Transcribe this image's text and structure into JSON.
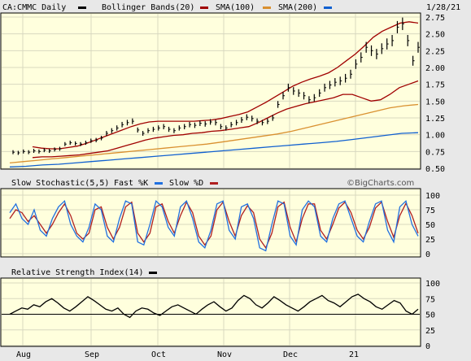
{
  "header": {
    "symbol": "CA:CMMC Daily",
    "bollinger_label": "Bollinger Bands(20)",
    "sma100_label": "SMA(100)",
    "sma200_label": "SMA(200)",
    "date": "1/28/21"
  },
  "stoch_header": {
    "title": "Slow Stochastic(5,5)",
    "fastk_label": "Fast %K",
    "slowd_label": "Slow %D",
    "watermark": "©BigCharts.com"
  },
  "rsi_header": {
    "title": "Relative Strength Index(14)"
  },
  "colors": {
    "background": "#ffffdd",
    "price": "#000000",
    "bollinger": "#a00000",
    "sma100": "#d99030",
    "sma200": "#1060d0",
    "fastk": "#2070e0",
    "slowd": "#b02020",
    "rsi": "#000000",
    "grid": "#d8d8c0"
  },
  "chart_data": [
    {
      "type": "line",
      "title": "CA:CMMC Daily",
      "ylim": [
        0.5,
        2.75
      ],
      "yticks": [
        "2.75",
        "2.50",
        "2.25",
        "2.00",
        "1.75",
        "1.50",
        "1.25",
        "1.00",
        "0.75",
        "0.50"
      ],
      "xticks": [
        "Aug",
        "Sep",
        "Oct",
        "Nov",
        "Dec",
        "21"
      ],
      "price_y": [
        0.74,
        0.73,
        0.75,
        0.74,
        0.76,
        0.75,
        0.77,
        0.76,
        0.78,
        0.79,
        0.86,
        0.88,
        0.87,
        0.86,
        0.88,
        0.91,
        0.92,
        0.95,
        1.02,
        1.06,
        1.1,
        1.15,
        1.18,
        1.2,
        1.07,
        1.02,
        1.06,
        1.08,
        1.1,
        1.12,
        1.08,
        1.06,
        1.1,
        1.12,
        1.15,
        1.14,
        1.17,
        1.16,
        1.19,
        1.18,
        1.12,
        1.1,
        1.15,
        1.18,
        1.22,
        1.26,
        1.24,
        1.2,
        1.18,
        1.2,
        1.25,
        1.45,
        1.58,
        1.7,
        1.65,
        1.62,
        1.58,
        1.52,
        1.55,
        1.62,
        1.7,
        1.74,
        1.78,
        1.8,
        1.84,
        1.9,
        2.05,
        2.15,
        2.3,
        2.25,
        2.2,
        2.28,
        2.35,
        2.4,
        2.6,
        2.65,
        2.4,
        2.1,
        2.3
      ],
      "series": [
        {
          "name": "Bollinger Bands(20)",
          "values": [
            0.82,
            0.8,
            0.79,
            0.79,
            0.81,
            0.83,
            0.87,
            0.92,
            0.97,
            1.02,
            1.07,
            1.12,
            1.16,
            1.19,
            1.2,
            1.2,
            1.2,
            1.2,
            1.2,
            1.21,
            1.22,
            1.24,
            1.27,
            1.3,
            1.34,
            1.41,
            1.48,
            1.56,
            1.64,
            1.72,
            1.78,
            1.83,
            1.87,
            1.92,
            2.0,
            2.1,
            2.2,
            2.32,
            2.45,
            2.54,
            2.6,
            2.66,
            2.68,
            2.66
          ]
        },
        {
          "name": "Bollinger Bands(20)",
          "values": [
            0.66,
            0.67,
            0.67,
            0.68,
            0.69,
            0.7,
            0.72,
            0.74,
            0.76,
            0.8,
            0.84,
            0.88,
            0.92,
            0.95,
            0.97,
            0.99,
            1.0,
            1.02,
            1.03,
            1.05,
            1.06,
            1.08,
            1.1,
            1.12,
            1.18,
            1.25,
            1.32,
            1.38,
            1.42,
            1.46,
            1.49,
            1.52,
            1.55,
            1.6,
            1.6,
            1.55,
            1.5,
            1.52,
            1.6,
            1.7,
            1.75,
            1.8
          ]
        },
        {
          "name": "SMA(100)",
          "values": [
            0.58,
            0.6,
            0.62,
            0.64,
            0.66,
            0.68,
            0.7,
            0.72,
            0.74,
            0.76,
            0.78,
            0.8,
            0.82,
            0.84,
            0.86,
            0.89,
            0.92,
            0.95,
            0.98,
            1.01,
            1.05,
            1.1,
            1.15,
            1.2,
            1.25,
            1.3,
            1.35,
            1.4,
            1.43,
            1.45
          ]
        },
        {
          "name": "SMA(200)",
          "values": [
            0.52,
            0.53,
            0.55,
            0.56,
            0.58,
            0.6,
            0.62,
            0.64,
            0.66,
            0.68,
            0.7,
            0.72,
            0.74,
            0.76,
            0.78,
            0.8,
            0.82,
            0.84,
            0.86,
            0.88,
            0.9,
            0.93,
            0.96,
            0.99,
            1.02,
            1.03
          ]
        }
      ]
    },
    {
      "type": "line",
      "title": "Slow Stochastic(5,5)",
      "ylim": [
        0,
        100
      ],
      "yticks": [
        "100",
        "75",
        "50",
        "25",
        "0"
      ],
      "series": [
        {
          "name": "Fast %K",
          "values": [
            70,
            85,
            60,
            50,
            75,
            40,
            30,
            60,
            80,
            90,
            50,
            30,
            20,
            45,
            85,
            75,
            30,
            20,
            60,
            90,
            85,
            20,
            15,
            50,
            90,
            80,
            45,
            30,
            80,
            90,
            60,
            20,
            10,
            40,
            85,
            90,
            40,
            25,
            80,
            85,
            60,
            10,
            5,
            50,
            90,
            85,
            30,
            15,
            75,
            90,
            80,
            30,
            20,
            60,
            85,
            90,
            60,
            30,
            20,
            55,
            85,
            90,
            40,
            20,
            80,
            90,
            50,
            30
          ]
        },
        {
          "name": "Slow %D",
          "values": [
            60,
            75,
            70,
            55,
            65,
            50,
            35,
            50,
            70,
            85,
            65,
            35,
            25,
            35,
            75,
            80,
            45,
            25,
            45,
            80,
            88,
            35,
            20,
            35,
            80,
            85,
            55,
            35,
            65,
            88,
            70,
            30,
            15,
            30,
            75,
            88,
            55,
            30,
            65,
            82,
            70,
            25,
            10,
            35,
            80,
            88,
            45,
            20,
            60,
            85,
            85,
            40,
            25,
            50,
            78,
            88,
            70,
            40,
            25,
            45,
            78,
            88,
            55,
            28,
            65,
            86,
            65,
            35
          ]
        }
      ]
    },
    {
      "type": "line",
      "title": "Relative Strength Index(14)",
      "ylim": [
        0,
        100
      ],
      "yticks": [
        "100",
        "75",
        "50",
        "25",
        "0"
      ],
      "series": [
        {
          "name": "Relative Strength Index(14)",
          "values": [
            50,
            55,
            60,
            58,
            65,
            62,
            70,
            75,
            68,
            60,
            55,
            62,
            70,
            78,
            72,
            65,
            58,
            55,
            60,
            50,
            45,
            55,
            60,
            58,
            52,
            48,
            55,
            62,
            65,
            60,
            55,
            50,
            58,
            65,
            70,
            62,
            55,
            60,
            72,
            80,
            75,
            65,
            60,
            68,
            78,
            72,
            65,
            60,
            55,
            62,
            70,
            75,
            80,
            72,
            68,
            62,
            70,
            78,
            82,
            75,
            70,
            62,
            58,
            65,
            72,
            68,
            55,
            50,
            58
          ]
        },
        {
          "name": "Relative Strength Index(14)",
          "values": [
            50,
            50
          ]
        }
      ]
    }
  ],
  "xaxis": [
    "Aug",
    "Sep",
    "Oct",
    "Nov",
    "Dec",
    "21"
  ]
}
